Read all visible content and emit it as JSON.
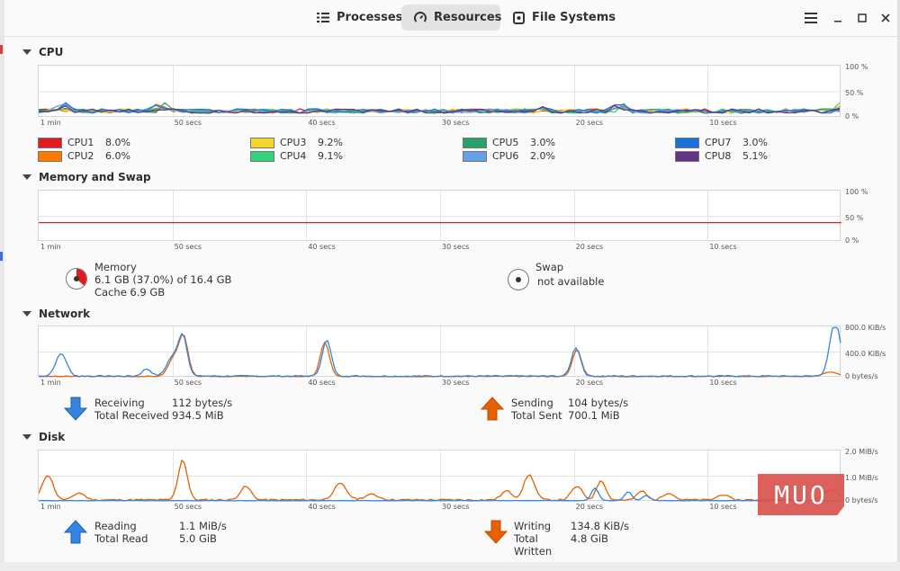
{
  "tabs": [
    {
      "label": "Processes",
      "icon": "processes-icon"
    },
    {
      "label": "Resources",
      "icon": "resources-gauge-icon"
    },
    {
      "label": "File Systems",
      "icon": "file-systems-icon"
    }
  ],
  "time_labels": [
    "1 min",
    "50 secs",
    "40 secs",
    "30 secs",
    "20 secs",
    "10 secs"
  ],
  "cpu": {
    "title": "CPU",
    "y_labels": [
      "100 %",
      "50 %",
      "0 %"
    ],
    "cores": [
      {
        "name": "CPU1",
        "value": "8.0%",
        "color": "#e01b24"
      },
      {
        "name": "CPU2",
        "value": "6.0%",
        "color": "#ff7800"
      },
      {
        "name": "CPU3",
        "value": "9.2%",
        "color": "#f6d32d"
      },
      {
        "name": "CPU4",
        "value": "9.1%",
        "color": "#33d17a"
      },
      {
        "name": "CPU5",
        "value": "3.0%",
        "color": "#26a269"
      },
      {
        "name": "CPU6",
        "value": "2.0%",
        "color": "#62a0ea"
      },
      {
        "name": "CPU7",
        "value": "3.0%",
        "color": "#1c71d8"
      },
      {
        "name": "CPU8",
        "value": "5.1%",
        "color": "#613583"
      }
    ]
  },
  "memory": {
    "title": "Memory and Swap",
    "y_labels": [
      "100 %",
      "50 %",
      "0 %"
    ],
    "memory_label": "Memory",
    "memory_usage": "6.1 GB (37.0%) of 16.4 GB",
    "memory_cache": "Cache 6.9 GB",
    "memory_percent": 37.0,
    "memory_color": "#e01b24",
    "swap_label": "Swap",
    "swap_status": "not available"
  },
  "network": {
    "title": "Network",
    "y_labels": [
      "800.0 KiB/s",
      "400.0 KiB/s",
      "0 bytes/s"
    ],
    "receiving_label": "Receiving",
    "receiving_value": "112 bytes/s",
    "total_received_label": "Total Received",
    "total_received_value": "934.5 MiB",
    "sending_label": "Sending",
    "sending_value": "104 bytes/s",
    "total_sent_label": "Total Sent",
    "total_sent_value": "700.1 MiB",
    "receive_color": "#3584e4",
    "send_color": "#e66100"
  },
  "disk": {
    "title": "Disk",
    "y_labels": [
      "2.0 MiB/s",
      "1.0 MiB/s",
      "0 bytes/s"
    ],
    "reading_label": "Reading",
    "reading_value": "1.1 MiB/s",
    "total_read_label": "Total Read",
    "total_read_value": "5.0 GiB",
    "writing_label": "Writing",
    "writing_value": "134.8 KiB/s",
    "total_written_label": "Total Written",
    "total_written_value": "4.8 GiB",
    "read_color": "#3584e4",
    "write_color": "#e66100"
  },
  "watermark": "MUO"
}
